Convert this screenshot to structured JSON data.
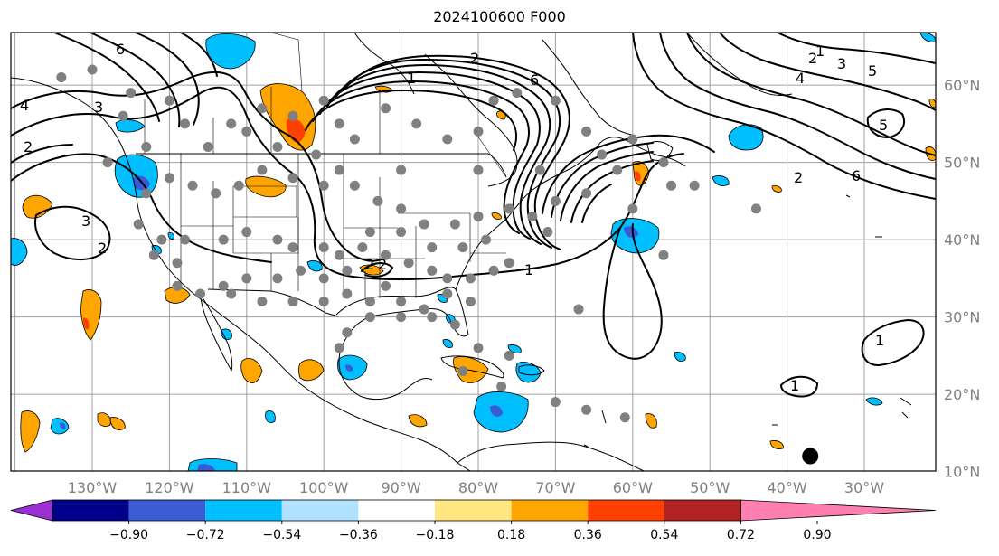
{
  "title": "2024100600 F000",
  "lon_labels": [
    "130°W",
    "120°W",
    "110°W",
    "100°W",
    "90°W",
    "80°W",
    "70°W",
    "60°W",
    "50°W",
    "40°W",
    "30°W"
  ],
  "lat_labels": [
    "60°N",
    "50°N",
    "40°N",
    "30°N",
    "20°N",
    "10°N"
  ],
  "colorbar": {
    "ticks": [
      "−0.90",
      "−0.72",
      "−0.54",
      "−0.36",
      "−0.18",
      "0.18",
      "0.36",
      "0.54",
      "0.72",
      "0.90"
    ],
    "colors": [
      "#9b30d0",
      "#00008b",
      "#3b5bd6",
      "#00bfff",
      "#b0e2ff",
      "#ffffff",
      "#ffe680",
      "#ffa500",
      "#ff4000",
      "#b22222",
      "#ff80b0"
    ]
  },
  "contour_labels": [
    "6",
    "4",
    "3",
    "2",
    "3",
    "1",
    "2",
    "6",
    "2",
    "1",
    "4",
    "3",
    "5",
    "2",
    "6",
    "5",
    "2",
    "1",
    "1",
    "1",
    "2",
    "2"
  ],
  "map_colors": {
    "positive_light": "#ffa500",
    "positive_strong": "#ff4000",
    "negative_light": "#00bfff",
    "negative_strong": "#3b5bd6",
    "station_dot": "#808080",
    "tc_marker": "#000000"
  },
  "station_dots": [
    [
      -134,
      61
    ],
    [
      -130,
      62
    ],
    [
      -125,
      59
    ],
    [
      -126,
      56
    ],
    [
      -120,
      58
    ],
    [
      -118,
      55
    ],
    [
      -112,
      55
    ],
    [
      -110,
      54
    ],
    [
      -108,
      57
    ],
    [
      -104,
      56
    ],
    [
      -100,
      58
    ],
    [
      -98,
      55
    ],
    [
      -92,
      57
    ],
    [
      -88,
      55
    ],
    [
      -84,
      53
    ],
    [
      -80,
      54
    ],
    [
      -78,
      58
    ],
    [
      -75,
      59
    ],
    [
      -70,
      58
    ],
    [
      -66,
      54
    ],
    [
      -64,
      51
    ],
    [
      -60,
      53
    ],
    [
      -56,
      50
    ],
    [
      -55,
      47
    ],
    [
      -62,
      49
    ],
    [
      -66,
      46
    ],
    [
      -70,
      45
    ],
    [
      -73,
      43
    ],
    [
      -76,
      44
    ],
    [
      -80,
      43
    ],
    [
      -83,
      42
    ],
    [
      -87,
      42
    ],
    [
      -90,
      44
    ],
    [
      -93,
      45
    ],
    [
      -96,
      47
    ],
    [
      -100,
      47
    ],
    [
      -104,
      48
    ],
    [
      -108,
      49
    ],
    [
      -111,
      47
    ],
    [
      -114,
      46
    ],
    [
      -117,
      47
    ],
    [
      -120,
      48
    ],
    [
      -123,
      46
    ],
    [
      -124,
      42
    ],
    [
      -121,
      40
    ],
    [
      -118,
      40
    ],
    [
      -113,
      40
    ],
    [
      -110,
      41
    ],
    [
      -106,
      40
    ],
    [
      -104,
      39
    ],
    [
      -100,
      39
    ],
    [
      -98,
      38
    ],
    [
      -95,
      39
    ],
    [
      -92,
      38
    ],
    [
      -89,
      37
    ],
    [
      -86,
      36
    ],
    [
      -84,
      35
    ],
    [
      -81,
      35
    ],
    [
      -78,
      36
    ],
    [
      -76,
      37
    ],
    [
      -79,
      40
    ],
    [
      -82,
      39
    ],
    [
      -86,
      39
    ],
    [
      -90,
      41
    ],
    [
      -94,
      41
    ],
    [
      -97,
      36
    ],
    [
      -100,
      35
    ],
    [
      -103,
      36
    ],
    [
      -106,
      35
    ],
    [
      -110,
      35
    ],
    [
      -113,
      34
    ],
    [
      -116,
      33
    ],
    [
      -119,
      34
    ],
    [
      -122,
      38
    ],
    [
      -119,
      37
    ],
    [
      -112,
      33
    ],
    [
      -108,
      32
    ],
    [
      -104,
      32
    ],
    [
      -100,
      32
    ],
    [
      -97,
      33
    ],
    [
      -94,
      32
    ],
    [
      -92,
      34
    ],
    [
      -90,
      32
    ],
    [
      -87,
      31
    ],
    [
      -84,
      33
    ],
    [
      -81,
      32
    ],
    [
      -83,
      29
    ],
    [
      -86,
      30
    ],
    [
      -90,
      30
    ],
    [
      -94,
      30
    ],
    [
      -97,
      28
    ],
    [
      -98,
      26
    ],
    [
      -80,
      26
    ],
    [
      -76,
      25
    ],
    [
      -82,
      23
    ],
    [
      -77,
      21
    ],
    [
      -70,
      19
    ],
    [
      -66,
      18
    ],
    [
      -61,
      17
    ],
    [
      -71,
      41
    ],
    [
      -60,
      44
    ],
    [
      -52,
      47
    ],
    [
      -56,
      38
    ],
    [
      -44,
      44
    ],
    [
      -67,
      31
    ],
    [
      -123,
      52
    ],
    [
      -128,
      50
    ],
    [
      -115,
      52
    ],
    [
      -106,
      52
    ],
    [
      -101,
      51
    ],
    [
      -96,
      53
    ],
    [
      -72,
      49
    ],
    [
      -80,
      49
    ],
    [
      -90,
      49
    ],
    [
      -98,
      49
    ]
  ],
  "tc_marker": [
    -37,
    12
  ]
}
